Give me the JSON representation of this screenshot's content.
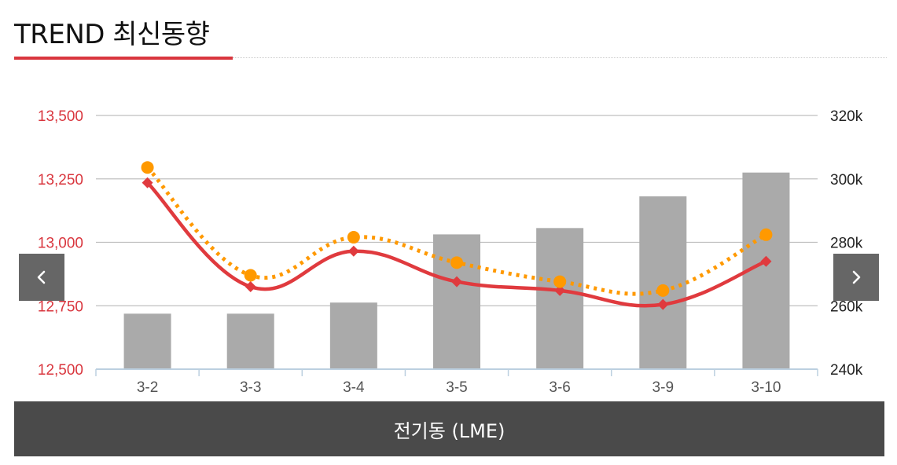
{
  "header": {
    "title": "TREND 최신동향"
  },
  "footer": {
    "label": "전기동 (LME)"
  },
  "colors": {
    "accent": "#d9363e",
    "price_line": "#e03a3e",
    "dotted_line": "#ff9900",
    "bars": "#aaaaaa",
    "left_axis_text": "#d9363e",
    "footer_bg": "#4a4a4a"
  },
  "chart_data": {
    "type": "bar",
    "categories": [
      "3-2",
      "3-3",
      "3-4",
      "3-5",
      "3-6",
      "3-9",
      "3-10"
    ],
    "left_axis": {
      "ticks": [
        "12,500",
        "12,750",
        "13,000",
        "13,250",
        "13,500"
      ],
      "ylim": [
        12500,
        13500
      ]
    },
    "right_axis": {
      "ticks": [
        "240k",
        "260k",
        "280k",
        "300k",
        "320k"
      ],
      "ylim": [
        240000,
        320000
      ]
    },
    "series": [
      {
        "type": "bar",
        "axis": "right",
        "color": "#aaaaaa",
        "values": [
          257500,
          257500,
          261000,
          282500,
          284500,
          294500,
          302000
        ]
      },
      {
        "type": "line",
        "axis": "left",
        "style": "solid",
        "marker": "diamond",
        "color": "#e03a3e",
        "values": [
          13235,
          12825,
          12965,
          12845,
          12810,
          12755,
          12925
        ]
      },
      {
        "type": "line",
        "axis": "left",
        "style": "dotted",
        "marker": "circle",
        "color": "#ff9900",
        "values": [
          13295,
          12870,
          13020,
          12920,
          12845,
          12810,
          13030
        ]
      }
    ],
    "grid": true,
    "legend": "none"
  },
  "nav": {
    "prev_icon": "chevron-left-icon",
    "next_icon": "chevron-right-icon"
  }
}
